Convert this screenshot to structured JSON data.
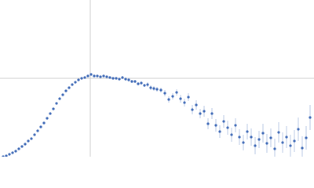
{
  "chart_data": {
    "type": "scatter",
    "color": "#3a66b5",
    "error_color": "#a9bde0",
    "xlim": [
      0,
      4
    ],
    "ylim": [
      0,
      2
    ],
    "reference_lines": {
      "x": 1.15,
      "y": 1.0,
      "color": "#cccccc"
    },
    "x": [
      0.04,
      0.08,
      0.12,
      0.16,
      0.2,
      0.24,
      0.28,
      0.32,
      0.36,
      0.4,
      0.44,
      0.48,
      0.52,
      0.56,
      0.6,
      0.64,
      0.68,
      0.72,
      0.76,
      0.8,
      0.84,
      0.88,
      0.92,
      0.96,
      1.0,
      1.04,
      1.08,
      1.12,
      1.16,
      1.2,
      1.24,
      1.28,
      1.32,
      1.36,
      1.4,
      1.44,
      1.48,
      1.52,
      1.56,
      1.6,
      1.64,
      1.68,
      1.72,
      1.76,
      1.8,
      1.84,
      1.88,
      1.92,
      1.96,
      2.0,
      2.05,
      2.1,
      2.15,
      2.2,
      2.25,
      2.3,
      2.35,
      2.4,
      2.45,
      2.5,
      2.55,
      2.6,
      2.65,
      2.7,
      2.75,
      2.8,
      2.85,
      2.9,
      2.95,
      3.0,
      3.05,
      3.1,
      3.15,
      3.2,
      3.25,
      3.3,
      3.35,
      3.4,
      3.45,
      3.5,
      3.55,
      3.6,
      3.65,
      3.7,
      3.75,
      3.8,
      3.85,
      3.9,
      3.95
    ],
    "values": [
      0.0,
      0.01,
      0.03,
      0.05,
      0.07,
      0.1,
      0.13,
      0.16,
      0.2,
      0.23,
      0.28,
      0.33,
      0.38,
      0.43,
      0.49,
      0.55,
      0.61,
      0.68,
      0.74,
      0.79,
      0.84,
      0.88,
      0.92,
      0.95,
      0.98,
      1.0,
      1.01,
      1.03,
      1.05,
      1.03,
      1.03,
      1.02,
      1.03,
      1.02,
      1.01,
      1.0,
      1.0,
      0.99,
      1.01,
      0.99,
      0.98,
      0.96,
      0.96,
      0.93,
      0.94,
      0.91,
      0.92,
      0.88,
      0.87,
      0.86,
      0.85,
      0.81,
      0.73,
      0.77,
      0.82,
      0.74,
      0.69,
      0.76,
      0.6,
      0.66,
      0.55,
      0.58,
      0.42,
      0.55,
      0.4,
      0.32,
      0.45,
      0.37,
      0.28,
      0.4,
      0.25,
      0.18,
      0.32,
      0.25,
      0.14,
      0.22,
      0.3,
      0.17,
      0.24,
      0.1,
      0.31,
      0.18,
      0.25,
      0.14,
      0.2,
      0.35,
      0.11,
      0.24,
      0.5
    ],
    "errors": [
      0,
      0,
      0,
      0,
      0,
      0,
      0,
      0,
      0,
      0,
      0,
      0,
      0,
      0,
      0,
      0,
      0,
      0,
      0,
      0,
      0,
      0,
      0,
      0,
      0.01,
      0.01,
      0.01,
      0.01,
      0.01,
      0.01,
      0.01,
      0.01,
      0.01,
      0.01,
      0.01,
      0.01,
      0.01,
      0.01,
      0.02,
      0.02,
      0.02,
      0.02,
      0.02,
      0.02,
      0.02,
      0.02,
      0.03,
      0.03,
      0.03,
      0.03,
      0.03,
      0.04,
      0.04,
      0.04,
      0.04,
      0.05,
      0.05,
      0.05,
      0.06,
      0.06,
      0.06,
      0.07,
      0.07,
      0.07,
      0.08,
      0.08,
      0.08,
      0.09,
      0.09,
      0.09,
      0.1,
      0.1,
      0.1,
      0.11,
      0.11,
      0.11,
      0.12,
      0.12,
      0.12,
      0.13,
      0.13,
      0.13,
      0.14,
      0.14,
      0.14,
      0.15,
      0.15,
      0.15,
      0.16
    ]
  }
}
